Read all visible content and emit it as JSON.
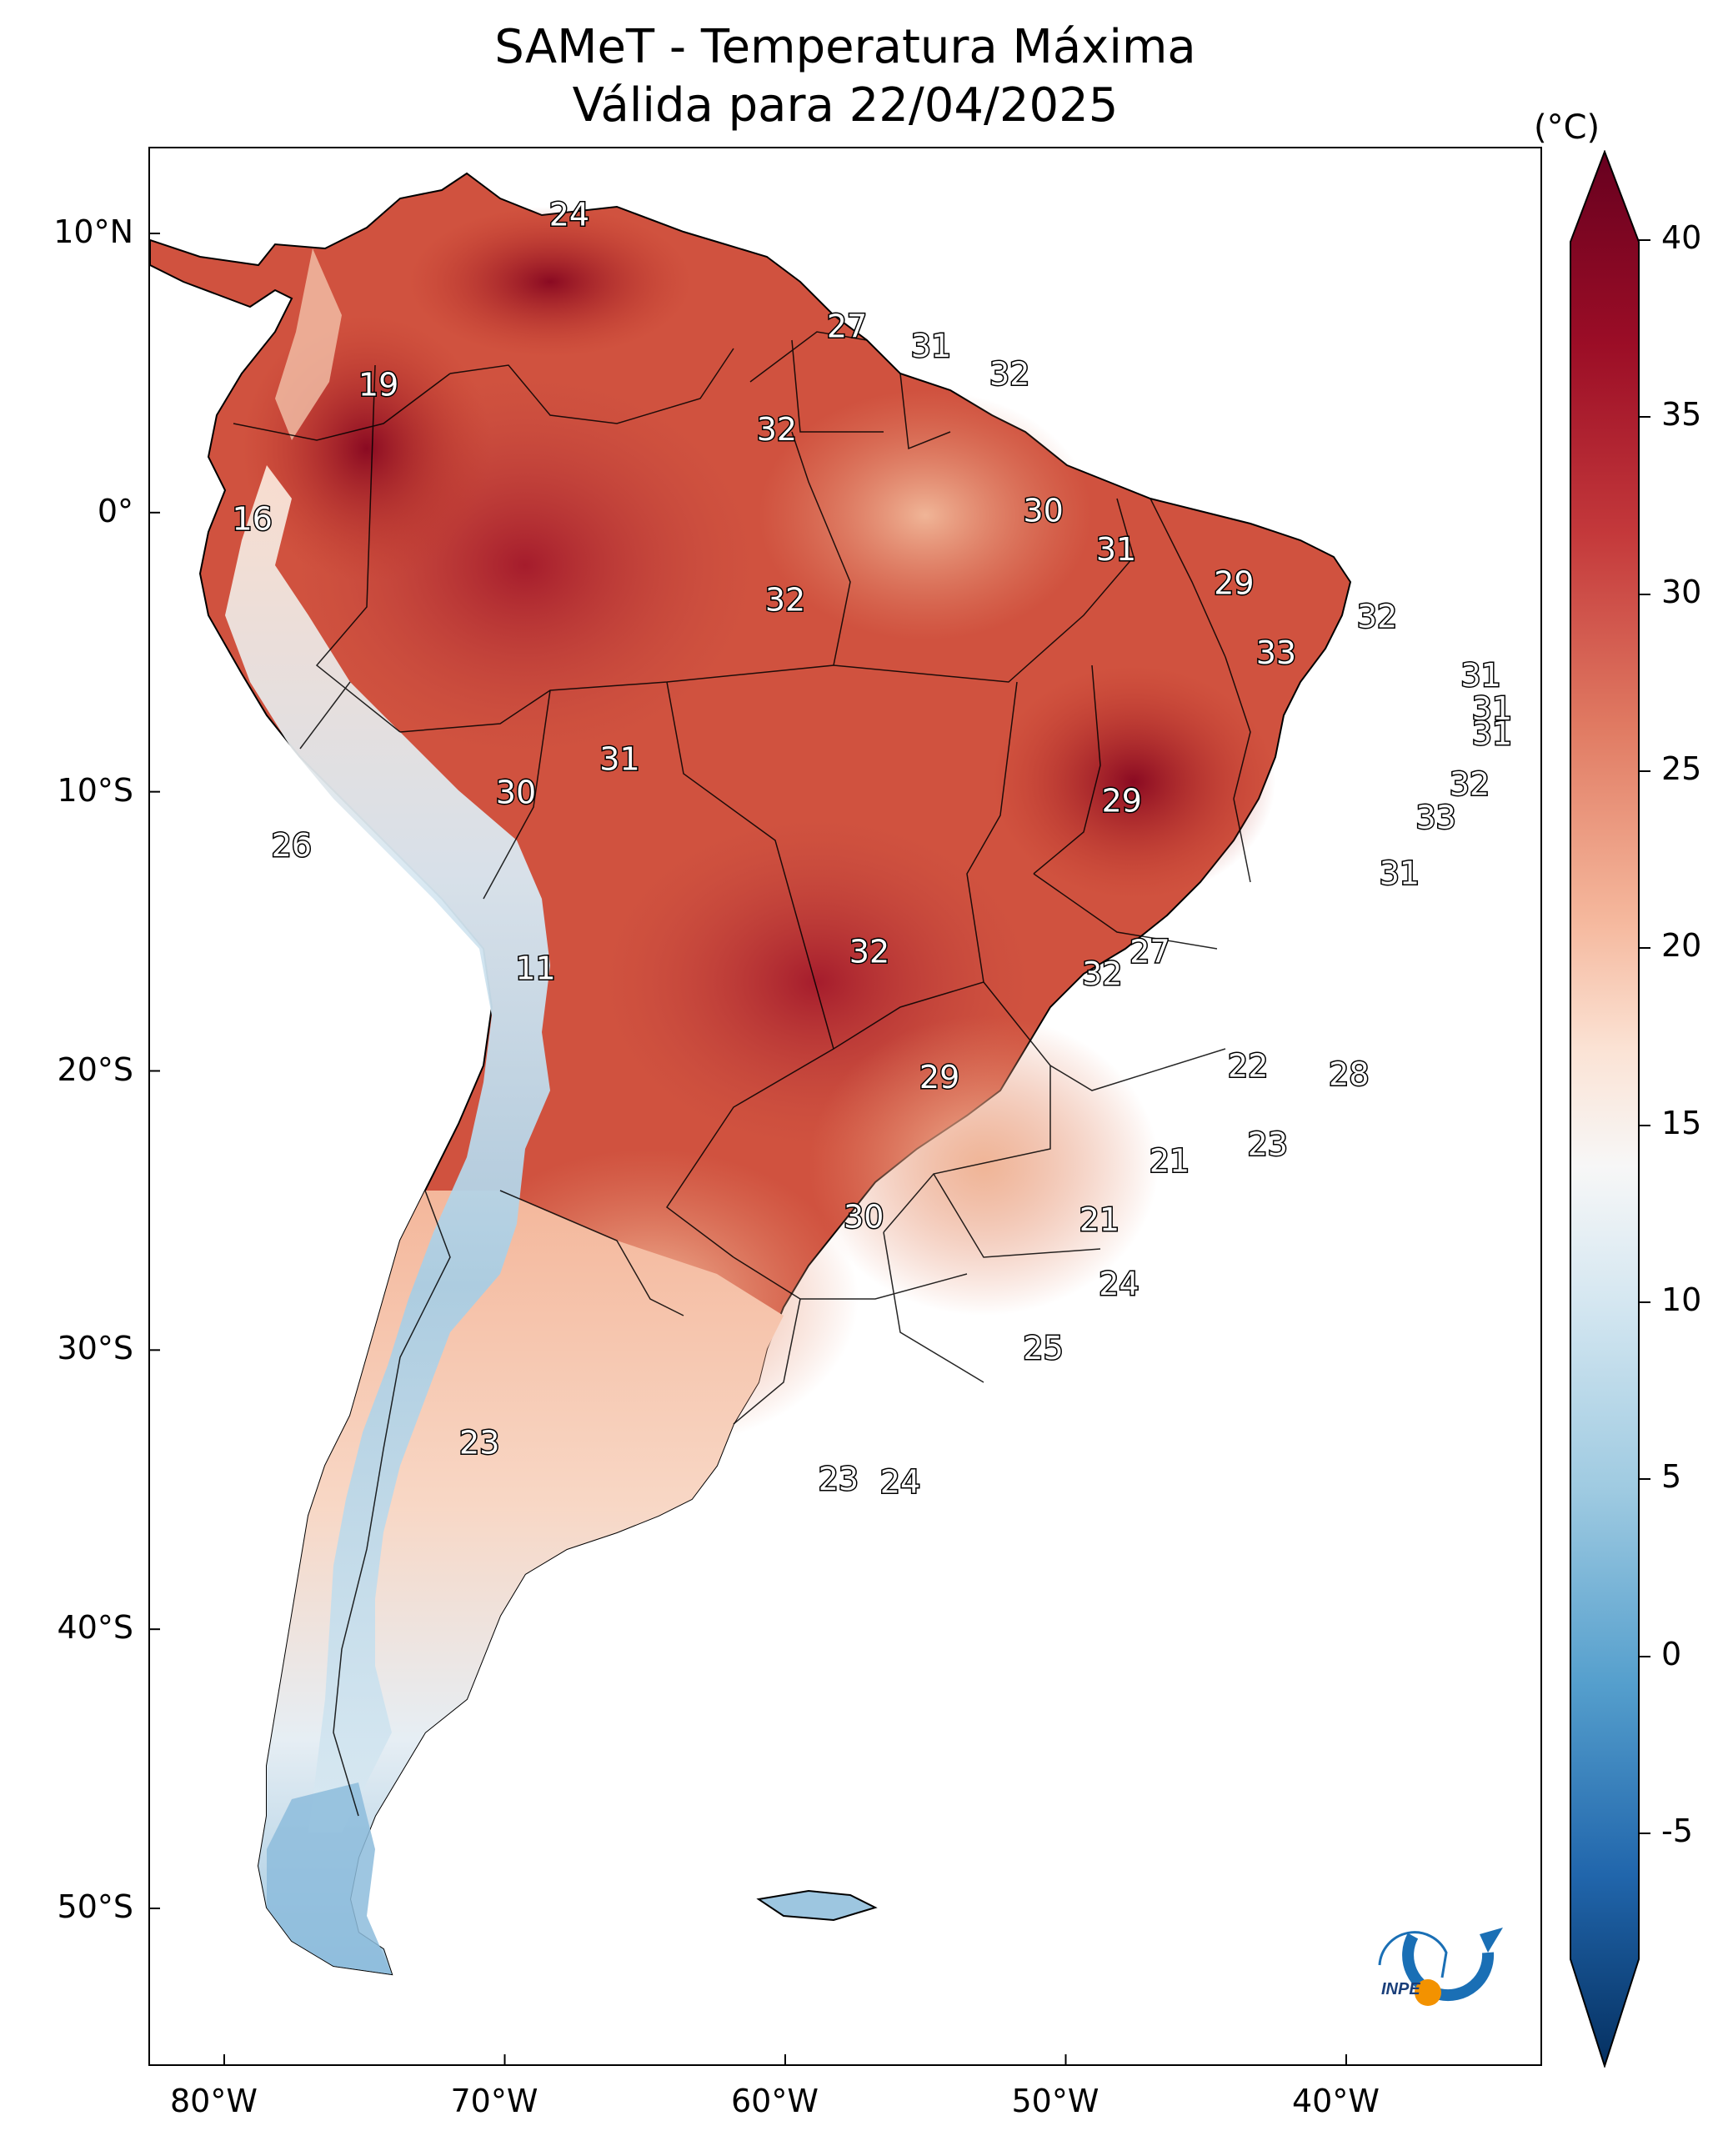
{
  "title_line1": "SAMeT - Temperatura Máxima",
  "title_line2": "Válida para 22/04/2025",
  "colorbar": {
    "unit": "(°C)",
    "ticks": [
      "40",
      "35",
      "30",
      "25",
      "20",
      "15",
      "10",
      "5",
      "0",
      "-5"
    ],
    "colors": [
      "#67001f",
      "#b2182b",
      "#d6604d",
      "#f4a582",
      "#fddbc7",
      "#f7f7f7",
      "#d1e5f0",
      "#92c5de",
      "#4393c3",
      "#2166ac",
      "#053061"
    ]
  },
  "axes": {
    "lon_ticks": [
      "80°W",
      "70°W",
      "60°W",
      "50°W",
      "40°W"
    ],
    "lat_ticks": [
      "10°N",
      "0°",
      "10°S",
      "20°S",
      "30°S",
      "40°S",
      "50°S"
    ]
  },
  "temperature_labels": [
    {
      "text": "24",
      "lon": -67.7,
      "lat": 10.6
    },
    {
      "text": "27",
      "lon": -57.8,
      "lat": 6.6
    },
    {
      "text": "31",
      "lon": -54.8,
      "lat": 5.9
    },
    {
      "text": "32",
      "lon": -52.0,
      "lat": 4.9
    },
    {
      "text": "19",
      "lon": -74.5,
      "lat": 4.5
    },
    {
      "text": "32",
      "lon": -60.3,
      "lat": 2.9
    },
    {
      "text": "30",
      "lon": -50.8,
      "lat": 0.0
    },
    {
      "text": "16",
      "lon": -79.0,
      "lat": -0.3
    },
    {
      "text": "31",
      "lon": -48.2,
      "lat": -1.4
    },
    {
      "text": "29",
      "lon": -44.0,
      "lat": -2.6
    },
    {
      "text": "32",
      "lon": -60.0,
      "lat": -3.2
    },
    {
      "text": "32",
      "lon": -38.9,
      "lat": -3.8
    },
    {
      "text": "33",
      "lon": -42.5,
      "lat": -5.1
    },
    {
      "text": "31",
      "lon": -35.2,
      "lat": -5.9
    },
    {
      "text": "31",
      "lon": -34.8,
      "lat": -7.1
    },
    {
      "text": "31",
      "lon": -34.8,
      "lat": -8.0
    },
    {
      "text": "31",
      "lon": -65.9,
      "lat": -8.9
    },
    {
      "text": "32",
      "lon": -35.6,
      "lat": -9.8
    },
    {
      "text": "30",
      "lon": -69.6,
      "lat": -10.1
    },
    {
      "text": "29",
      "lon": -48.0,
      "lat": -10.4
    },
    {
      "text": "33",
      "lon": -36.8,
      "lat": -11.0
    },
    {
      "text": "26",
      "lon": -77.6,
      "lat": -12.0
    },
    {
      "text": "31",
      "lon": -38.1,
      "lat": -13.0
    },
    {
      "text": "27",
      "lon": -47.0,
      "lat": -15.8
    },
    {
      "text": "32",
      "lon": -57.0,
      "lat": -15.8
    },
    {
      "text": "11",
      "lon": -68.9,
      "lat": -16.4
    },
    {
      "text": "32",
      "lon": -48.7,
      "lat": -16.6
    },
    {
      "text": "22",
      "lon": -43.5,
      "lat": -19.9
    },
    {
      "text": "28",
      "lon": -39.9,
      "lat": -20.2
    },
    {
      "text": "29",
      "lon": -54.5,
      "lat": -20.3
    },
    {
      "text": "23",
      "lon": -42.8,
      "lat": -22.7
    },
    {
      "text": "21",
      "lon": -46.3,
      "lat": -23.3
    },
    {
      "text": "30",
      "lon": -57.2,
      "lat": -25.3
    },
    {
      "text": "21",
      "lon": -48.8,
      "lat": -25.4
    },
    {
      "text": "24",
      "lon": -48.1,
      "lat": -27.7
    },
    {
      "text": "25",
      "lon": -50.8,
      "lat": -30.0
    },
    {
      "text": "23",
      "lon": -70.9,
      "lat": -33.4
    },
    {
      "text": "23",
      "lon": -58.1,
      "lat": -34.7
    },
    {
      "text": "24",
      "lon": -55.9,
      "lat": -34.8
    }
  ]
}
